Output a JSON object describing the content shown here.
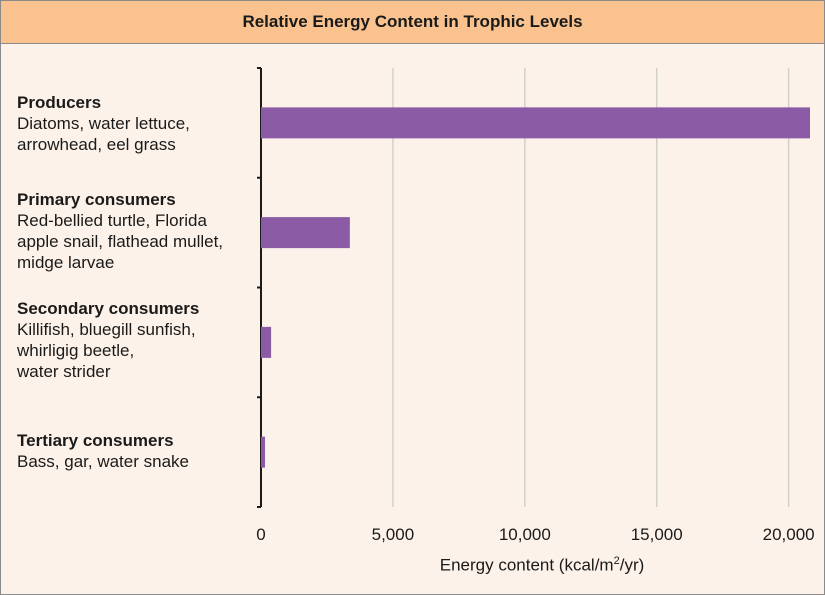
{
  "chart_data": {
    "type": "bar",
    "orientation": "horizontal",
    "title": "Relative Energy Content in Trophic Levels",
    "xlabel_pre": "Energy content (kcal/m",
    "xlabel_sup": "2",
    "xlabel_post": "/yr)",
    "ylabel": "",
    "xlim": [
      0,
      20810
    ],
    "xticks": [
      0,
      5000,
      10000,
      15000,
      20000
    ],
    "xtick_labels": [
      "0",
      "5,000",
      "10,000",
      "15,000",
      "20,000"
    ],
    "grid": true,
    "bar_color": "#8b5ba6",
    "categories": [
      {
        "name": "Producers",
        "examples": "Diatoms, water lettuce,\narrowhead, eel grass"
      },
      {
        "name": "Primary consumers",
        "examples": "Red-bellied turtle, Florida\napple snail, flathead mullet,\nmidge larvae"
      },
      {
        "name": "Secondary consumers",
        "examples": "Killifish, bluegill sunfish,\nwhirligig beetle,\nwater strider"
      },
      {
        "name": "Tertiary consumers",
        "examples": "Bass, gar, water snake"
      }
    ],
    "values": [
      20810,
      3368,
      383,
      21
    ]
  }
}
